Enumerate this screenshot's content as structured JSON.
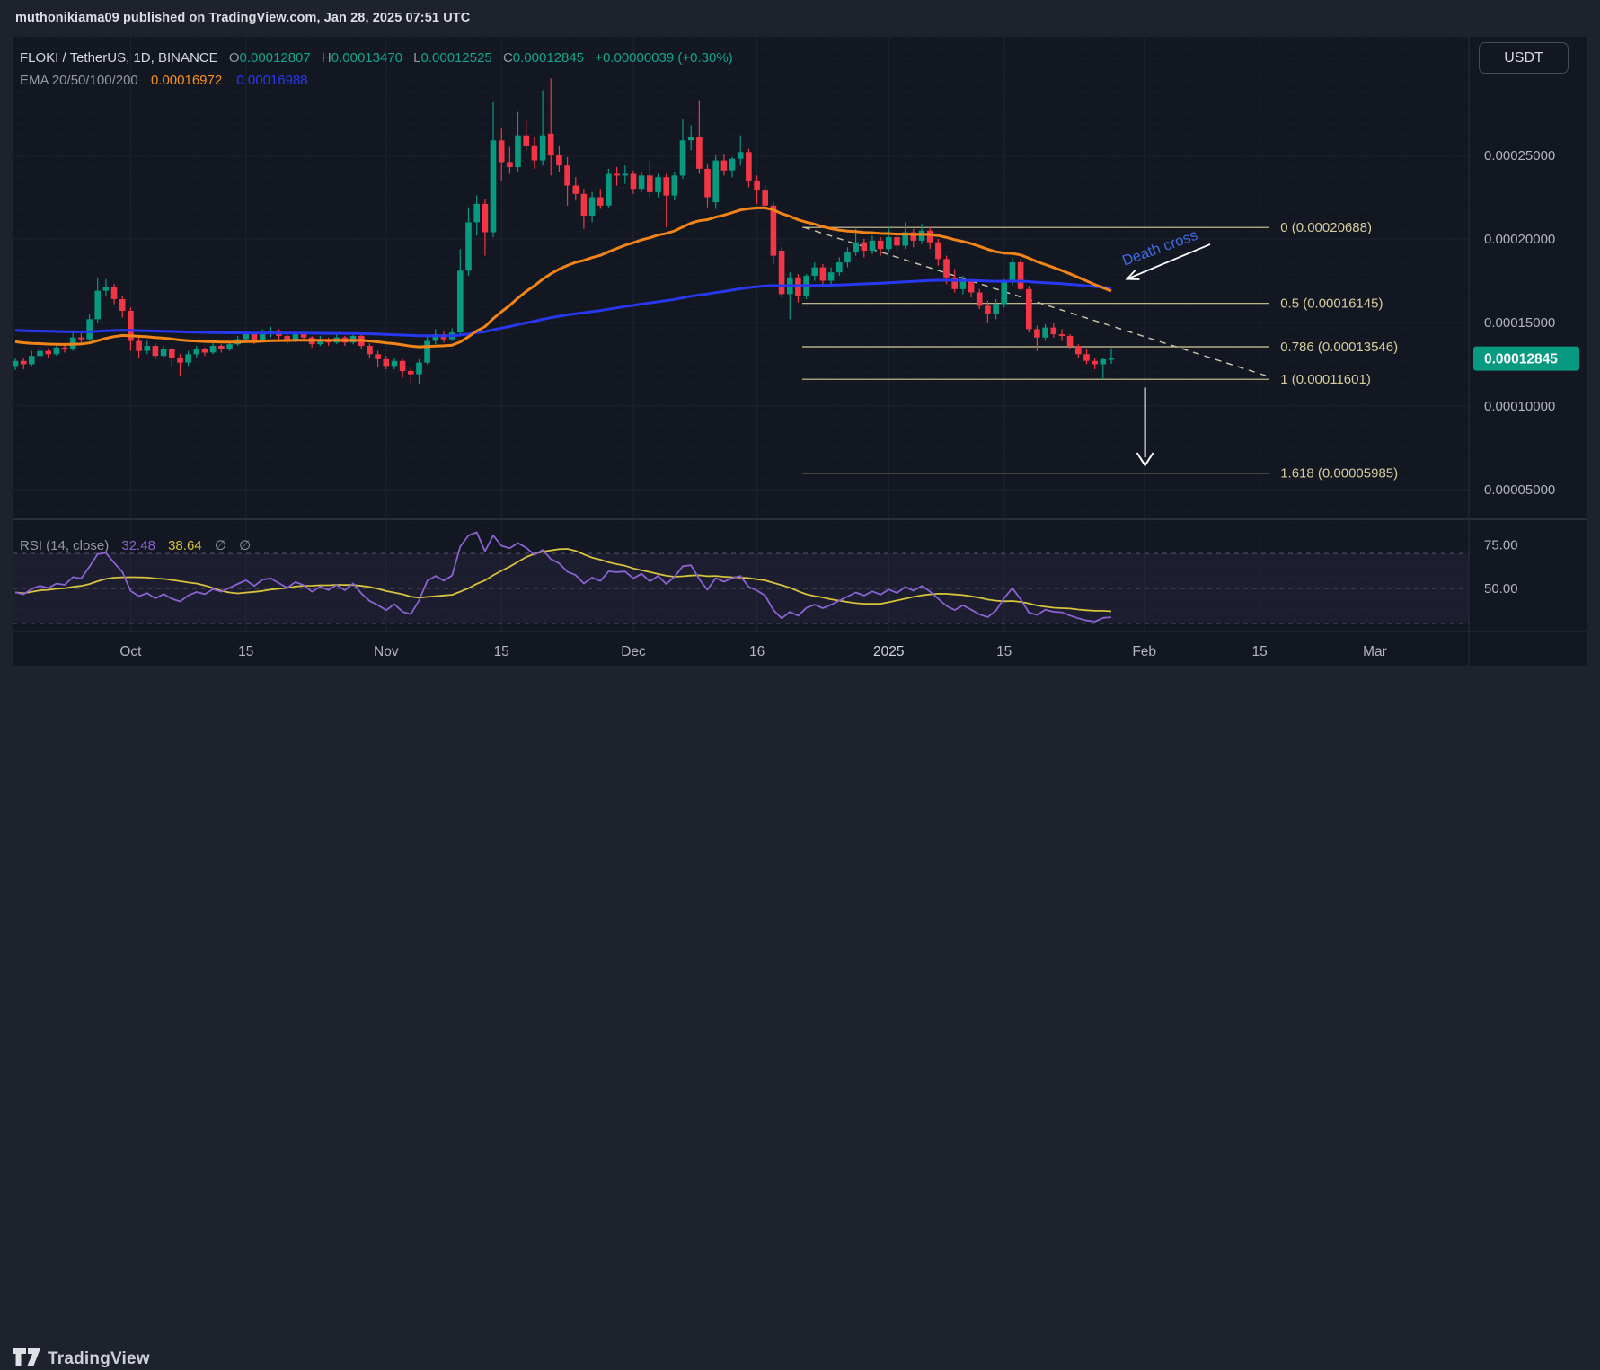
{
  "page": {
    "published_line": "muthonikiama09 published on TradingView.com, Jan 28, 2025 07:51 UTC"
  },
  "legend": {
    "symbol": "FLOKI / TetherUS, 1D, BINANCE",
    "o_label": "O",
    "o": "0.00012807",
    "h_label": "H",
    "h": "0.00013470",
    "l_label": "L",
    "l": "0.00012525",
    "c_label": "C",
    "c": "0.00012845",
    "change": "+0.00000039 (+0.30%)",
    "ema_label": "EMA 20/50/100/200",
    "ema_value_1": "0.00016972",
    "ema_value_2": "0.00016988"
  },
  "toolbar": {
    "currency_button": "USDT"
  },
  "rsi_legend": {
    "title": "RSI (14, close)",
    "value": "32.48",
    "ma_value": "38.64",
    "slot1": "∅",
    "slot2": "∅"
  },
  "footer": {
    "brand": "TradingView"
  },
  "axes": {
    "price_ticks": [
      {
        "label": "0.00025000",
        "value": 0.00025
      },
      {
        "label": "0.00020000",
        "value": 0.0002
      },
      {
        "label": "0.00015000",
        "value": 0.00015
      },
      {
        "label": "0.00010000",
        "value": 0.0001
      },
      {
        "label": "0.00005000",
        "value": 5e-05
      }
    ],
    "last_price": {
      "label": "0.00012845",
      "value": 0.00012845
    },
    "time_ticks": [
      {
        "label": "Oct",
        "i": 14
      },
      {
        "label": "15",
        "i": 28
      },
      {
        "label": "Nov",
        "i": 45
      },
      {
        "label": "15",
        "i": 59
      },
      {
        "label": "Dec",
        "i": 75
      },
      {
        "label": "16",
        "i": 90
      },
      {
        "label": "2025",
        "i": 106
      },
      {
        "label": "15",
        "i": 120
      },
      {
        "label": "Feb",
        "i": 137
      },
      {
        "label": "15",
        "i": 151
      },
      {
        "label": "Mar",
        "i": 165
      }
    ],
    "rsi_ticks": [
      {
        "label": "75.00",
        "value": 75
      },
      {
        "label": "50.00",
        "value": 50
      }
    ]
  },
  "colors": {
    "up": "#089981",
    "down": "#f23645",
    "ema_fast": "#f28418",
    "ema_slow": "#2838f0",
    "rsi": "#8a63d2",
    "rsi_ma": "#d8c33c",
    "fib": "#d5cc9c",
    "trend_dash": "#c6c0a4",
    "annotation_blue": "#3f6be0",
    "badge": "#089981"
  },
  "chart_data": {
    "type": "candlestick",
    "symbol": "FLOKI / TetherUS",
    "exchange": "BINANCE",
    "interval": "1D",
    "start_date": "2024-09-17",
    "end_date": "2025-01-28",
    "price_unit": 1e-05,
    "candles": [
      [
        12.4,
        12.9,
        12.15,
        12.7
      ],
      [
        12.7,
        12.85,
        12.2,
        12.5
      ],
      [
        12.5,
        13.3,
        12.4,
        13.0
      ],
      [
        13.0,
        13.5,
        12.8,
        13.3
      ],
      [
        13.3,
        13.45,
        12.9,
        13.1
      ],
      [
        13.1,
        13.7,
        13.0,
        13.5
      ],
      [
        13.5,
        13.65,
        13.2,
        13.4
      ],
      [
        13.4,
        14.4,
        13.3,
        14.1
      ],
      [
        14.1,
        14.35,
        13.8,
        14.0
      ],
      [
        14.0,
        15.5,
        13.9,
        15.2
      ],
      [
        15.2,
        17.7,
        15.0,
        16.9
      ],
      [
        16.9,
        17.6,
        16.6,
        17.1
      ],
      [
        17.1,
        17.3,
        16.1,
        16.4
      ],
      [
        16.4,
        16.6,
        15.3,
        15.7
      ],
      [
        15.7,
        15.9,
        13.3,
        13.9
      ],
      [
        13.9,
        14.1,
        12.9,
        13.3
      ],
      [
        13.3,
        13.9,
        13.1,
        13.6
      ],
      [
        13.6,
        13.75,
        12.8,
        13.0
      ],
      [
        13.0,
        13.6,
        12.9,
        13.4
      ],
      [
        13.4,
        13.5,
        12.4,
        12.9
      ],
      [
        12.9,
        13.1,
        11.8,
        12.6
      ],
      [
        12.6,
        13.3,
        12.4,
        13.1
      ],
      [
        13.1,
        13.6,
        12.9,
        13.4
      ],
      [
        13.4,
        13.5,
        13.0,
        13.2
      ],
      [
        13.2,
        13.8,
        13.1,
        13.6
      ],
      [
        13.6,
        13.7,
        13.2,
        13.4
      ],
      [
        13.4,
        13.9,
        13.3,
        13.7
      ],
      [
        13.7,
        14.2,
        13.6,
        14.0
      ],
      [
        14.0,
        14.5,
        13.9,
        14.3
      ],
      [
        14.3,
        14.4,
        13.7,
        13.9
      ],
      [
        13.9,
        14.6,
        13.8,
        14.4
      ],
      [
        14.4,
        14.75,
        14.1,
        14.5
      ],
      [
        14.5,
        14.6,
        14.0,
        14.2
      ],
      [
        14.2,
        14.35,
        13.7,
        13.9
      ],
      [
        13.9,
        14.5,
        13.8,
        14.3
      ],
      [
        14.3,
        14.45,
        13.9,
        14.1
      ],
      [
        14.1,
        14.2,
        13.5,
        13.7
      ],
      [
        13.7,
        14.2,
        13.6,
        14.0
      ],
      [
        14.0,
        14.1,
        13.6,
        13.8
      ],
      [
        13.8,
        14.3,
        13.7,
        14.1
      ],
      [
        14.1,
        14.2,
        13.6,
        13.8
      ],
      [
        13.8,
        14.4,
        13.7,
        14.2
      ],
      [
        14.2,
        14.3,
        13.4,
        13.6
      ],
      [
        13.6,
        13.75,
        12.9,
        13.1
      ],
      [
        13.1,
        13.3,
        12.3,
        12.8
      ],
      [
        12.8,
        13.0,
        12.2,
        12.4
      ],
      [
        12.4,
        12.9,
        12.2,
        12.7
      ],
      [
        12.7,
        12.8,
        11.7,
        12.1
      ],
      [
        12.1,
        12.3,
        11.4,
        11.9
      ],
      [
        11.9,
        12.8,
        11.3,
        12.6
      ],
      [
        12.6,
        14.2,
        12.5,
        13.9
      ],
      [
        13.9,
        14.6,
        13.7,
        14.3
      ],
      [
        14.3,
        14.45,
        13.8,
        14.0
      ],
      [
        14.0,
        14.65,
        13.9,
        14.4
      ],
      [
        14.4,
        19.4,
        14.2,
        18.1
      ],
      [
        18.1,
        21.9,
        17.8,
        21.0
      ],
      [
        21.0,
        22.6,
        20.2,
        22.1
      ],
      [
        22.1,
        22.4,
        19.0,
        20.4
      ],
      [
        20.4,
        28.2,
        20.1,
        25.9
      ],
      [
        25.9,
        26.6,
        23.5,
        24.6
      ],
      [
        24.6,
        25.5,
        23.9,
        24.3
      ],
      [
        24.3,
        27.6,
        24.0,
        26.2
      ],
      [
        26.2,
        27.1,
        25.3,
        25.6
      ],
      [
        25.6,
        26.1,
        24.2,
        24.7
      ],
      [
        24.7,
        28.9,
        24.4,
        26.2
      ],
      [
        26.3,
        29.6,
        23.8,
        25.0
      ],
      [
        25.0,
        25.6,
        24.0,
        24.4
      ],
      [
        24.4,
        24.9,
        22.0,
        23.2
      ],
      [
        23.2,
        23.7,
        22.3,
        22.7
      ],
      [
        22.7,
        23.0,
        20.6,
        21.4
      ],
      [
        21.4,
        22.8,
        21.0,
        22.5
      ],
      [
        22.5,
        23.0,
        21.8,
        22.0
      ],
      [
        22.0,
        24.2,
        21.9,
        23.9
      ],
      [
        23.9,
        24.3,
        23.2,
        23.8
      ],
      [
        23.8,
        24.4,
        23.3,
        23.9
      ],
      [
        23.9,
        24.1,
        22.7,
        23.0
      ],
      [
        23.0,
        24.0,
        22.8,
        23.8
      ],
      [
        23.8,
        24.7,
        22.5,
        22.8
      ],
      [
        22.8,
        23.9,
        22.5,
        23.7
      ],
      [
        23.7,
        23.9,
        20.7,
        22.6
      ],
      [
        22.6,
        24.0,
        22.3,
        23.8
      ],
      [
        23.8,
        27.2,
        23.6,
        25.9
      ],
      [
        25.9,
        26.8,
        25.3,
        26.1
      ],
      [
        26.1,
        28.3,
        23.9,
        24.2
      ],
      [
        24.2,
        24.5,
        21.9,
        22.5
      ],
      [
        22.2,
        25.0,
        21.8,
        24.7
      ],
      [
        24.7,
        25.1,
        23.8,
        24.1
      ],
      [
        24.1,
        24.9,
        23.7,
        24.8
      ],
      [
        24.8,
        26.2,
        24.4,
        25.2
      ],
      [
        25.2,
        25.4,
        23.1,
        23.5
      ],
      [
        23.5,
        23.8,
        22.1,
        22.9
      ],
      [
        22.9,
        23.2,
        21.7,
        22.0
      ],
      [
        22.0,
        22.2,
        18.5,
        19.0
      ],
      [
        19.3,
        19.5,
        16.5,
        16.7
      ],
      [
        16.7,
        18.0,
        15.2,
        17.7
      ],
      [
        17.7,
        17.9,
        16.2,
        16.6
      ],
      [
        16.6,
        17.9,
        16.4,
        17.8
      ],
      [
        17.8,
        18.6,
        17.5,
        18.3
      ],
      [
        18.3,
        18.5,
        17.3,
        17.5
      ],
      [
        17.5,
        18.3,
        17.2,
        18.0
      ],
      [
        18.0,
        18.9,
        17.8,
        18.6
      ],
      [
        18.6,
        19.5,
        18.3,
        19.2
      ],
      [
        19.2,
        20.6,
        19.0,
        19.8
      ],
      [
        19.8,
        20.0,
        18.9,
        19.3
      ],
      [
        19.3,
        20.2,
        19.1,
        19.9
      ],
      [
        19.9,
        20.1,
        19.0,
        19.4
      ],
      [
        19.4,
        20.7,
        19.2,
        20.1
      ],
      [
        20.1,
        20.4,
        19.3,
        19.6
      ],
      [
        19.6,
        21.0,
        19.4,
        20.4
      ],
      [
        20.4,
        20.6,
        19.5,
        19.9
      ],
      [
        19.9,
        20.9,
        19.7,
        20.5
      ],
      [
        20.5,
        20.7,
        19.4,
        19.8
      ],
      [
        19.8,
        20.0,
        18.4,
        18.8
      ],
      [
        18.8,
        19.0,
        17.3,
        17.7
      ],
      [
        17.7,
        18.2,
        16.8,
        17.0
      ],
      [
        17.0,
        17.8,
        16.7,
        17.5
      ],
      [
        17.5,
        17.6,
        16.5,
        16.8
      ],
      [
        16.8,
        17.0,
        15.8,
        16.0
      ],
      [
        16.0,
        16.3,
        15.0,
        15.5
      ],
      [
        15.5,
        16.4,
        15.2,
        16.1
      ],
      [
        16.1,
        17.6,
        15.9,
        17.4
      ],
      [
        17.4,
        18.9,
        17.2,
        18.6
      ],
      [
        18.6,
        18.8,
        16.9,
        17.0
      ],
      [
        17.0,
        17.2,
        14.4,
        14.6
      ],
      [
        14.6,
        14.8,
        13.3,
        14.1
      ],
      [
        14.1,
        14.9,
        13.9,
        14.7
      ],
      [
        14.7,
        15.0,
        14.1,
        14.3
      ],
      [
        14.3,
        14.6,
        13.9,
        14.2
      ],
      [
        14.2,
        14.3,
        13.4,
        13.6
      ],
      [
        13.6,
        13.7,
        12.9,
        13.1
      ],
      [
        13.1,
        13.4,
        12.5,
        12.7
      ],
      [
        12.7,
        12.9,
        12.2,
        12.5
      ],
      [
        12.5,
        12.9,
        11.6,
        12.8
      ],
      [
        12.807,
        13.47,
        12.525,
        12.845
      ]
    ],
    "overlays": {
      "ema_fast": {
        "period": 45,
        "seed": 13.9
      },
      "ema_slow": {
        "period": 200,
        "seed": 14.55
      }
    },
    "rsi": {
      "period": 14,
      "seed_gain": 0.32,
      "seed_loss": 0.35,
      "ma_period": 14
    },
    "fib_levels": [
      {
        "label": "0 (0.00020688)",
        "value": 0.00020688
      },
      {
        "label": "0.5 (0.00016145)",
        "value": 0.00016145
      },
      {
        "label": "0.786 (0.00013546)",
        "value": 0.00013546
      },
      {
        "label": "1 (0.00011601)",
        "value": 0.00011601
      },
      {
        "label": "1.618 (0.00005985)",
        "value": 5.985e-05
      }
    ],
    "fib_range": {
      "i1": 95.5,
      "i2": 152.1
    },
    "trendline": {
      "i1": 95.7,
      "p1": 0.000207,
      "i2": 152.1,
      "p2": 0.0001177
    },
    "annotations": {
      "death_cross": {
        "label": "Death cross",
        "text_i": 139.1,
        "text_p": 0.000192,
        "rot": -20,
        "arrow": {
          "i1": 145,
          "p1": 0.0001968,
          "i2": 134.9,
          "p2": 0.000176
        }
      },
      "down_arrow": {
        "i": 137.1,
        "p1": 0.000111,
        "p2": 6.45e-05
      }
    }
  }
}
